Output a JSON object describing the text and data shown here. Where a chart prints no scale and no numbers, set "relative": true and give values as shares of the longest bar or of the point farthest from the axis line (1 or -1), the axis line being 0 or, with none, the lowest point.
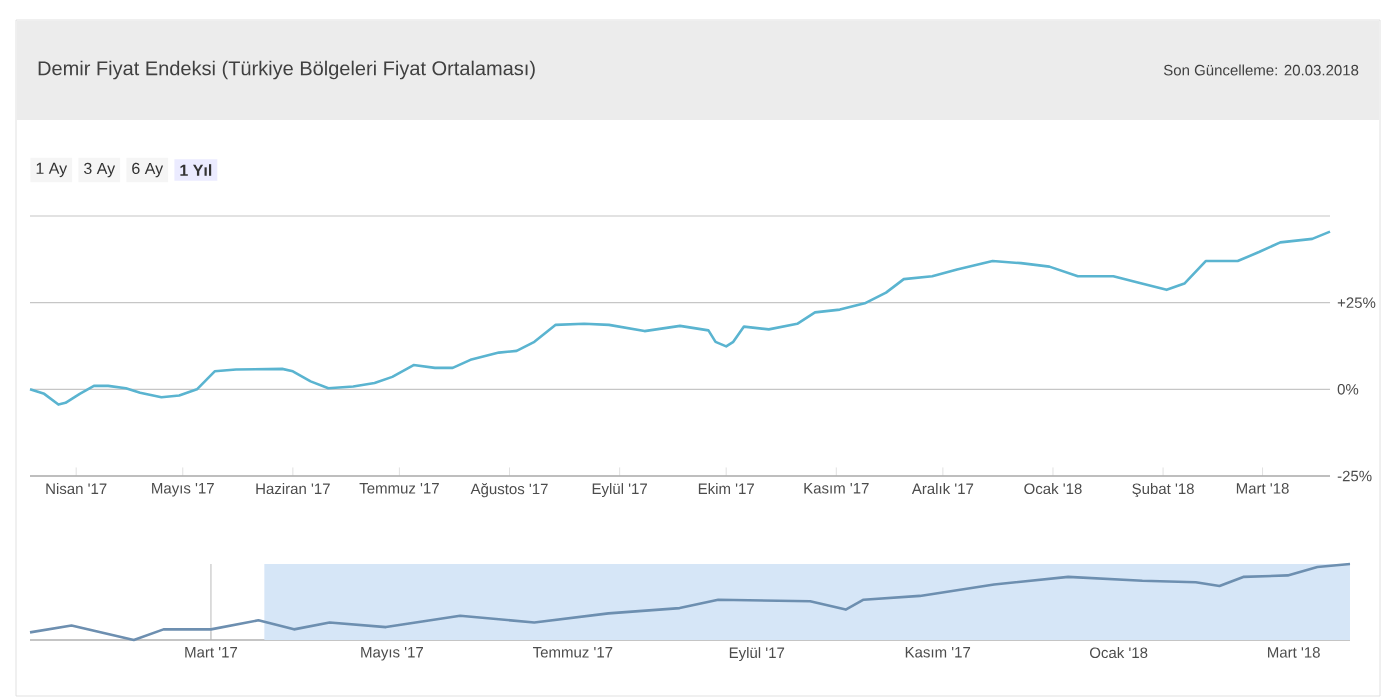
{
  "chart_data": [
    {
      "type": "line",
      "title": "Demir Fiyat Endeksi (Türkiye Bölgeleri Fiyat Ortalaması)",
      "annotations": [
        "Son Güncelleme: 20.03.2018",
        "1 Ay",
        "3 Ay",
        "6 Ay",
        "1 Yıl"
      ],
      "x": [
        "2017-03-19",
        "2017-03-23",
        "2017-03-27",
        "2017-03-29",
        "2017-04-02",
        "2017-04-06",
        "2017-04-10",
        "2017-04-15",
        "2017-04-19",
        "2017-04-25",
        "2017-04-30",
        "2017-05-05",
        "2017-05-10",
        "2017-05-16",
        "2017-05-29",
        "2017-06-01",
        "2017-06-06",
        "2017-06-11",
        "2017-06-18",
        "2017-06-24",
        "2017-06-29",
        "2017-07-05",
        "2017-07-11",
        "2017-07-16",
        "2017-07-21",
        "2017-07-29",
        "2017-08-03",
        "2017-08-08",
        "2017-08-14",
        "2017-08-22",
        "2017-08-29",
        "2017-09-08",
        "2017-09-18",
        "2017-09-26",
        "2017-09-28",
        "2017-10-01",
        "2017-10-03",
        "2017-10-06",
        "2017-10-13",
        "2017-10-21",
        "2017-10-26",
        "2017-11-02",
        "2017-11-09",
        "2017-11-15",
        "2017-11-20",
        "2017-11-28",
        "2017-12-05",
        "2017-12-15",
        "2017-12-23",
        "2017-12-31",
        "2018-01-08",
        "2018-01-18",
        "2018-01-26",
        "2018-02-02",
        "2018-02-07",
        "2018-02-13",
        "2018-02-22",
        "2018-02-28",
        "2018-03-06",
        "2018-03-15",
        "2018-03-20"
      ],
      "values": [
        0,
        -1.3,
        -4.4,
        -3.9,
        -1.3,
        1,
        1,
        0.3,
        -1,
        -2.3,
        -1.8,
        0,
        5.2,
        5.7,
        5.9,
        5.2,
        2.3,
        0.3,
        0.8,
        1.8,
        3.6,
        7,
        6.2,
        6.2,
        8.5,
        10.6,
        11.1,
        13.7,
        18.6,
        18.9,
        18.6,
        16.8,
        18.3,
        17,
        13.7,
        12.4,
        13.7,
        18.1,
        17.3,
        18.9,
        22.2,
        23,
        24.8,
        27.9,
        31.8,
        32.6,
        34.6,
        37,
        36.4,
        35.4,
        32.6,
        32.6,
        30.5,
        28.7,
        30.5,
        37,
        37,
        39.6,
        42.4,
        43.4,
        45.5
      ],
      "color": "#5ab4d0",
      "marker": "none",
      "xlim": [
        "2017-03-19",
        "2018-03-20"
      ],
      "xticks": [
        {
          "value": "2017-04-01",
          "label": "Nisan '17"
        },
        {
          "value": "2017-05-01",
          "label": "Mayıs '17"
        },
        {
          "value": "2017-06-01",
          "label": "Haziran '17"
        },
        {
          "value": "2017-07-01",
          "label": "Temmuz '17"
        },
        {
          "value": "2017-08-01",
          "label": "Ağustos '17"
        },
        {
          "value": "2017-09-01",
          "label": "Eylül '17"
        },
        {
          "value": "2017-10-01",
          "label": "Ekim '17"
        },
        {
          "value": "2017-11-01",
          "label": "Kasım '17"
        },
        {
          "value": "2017-12-01",
          "label": "Aralık '17"
        },
        {
          "value": "2018-01-01",
          "label": "Ocak '18"
        },
        {
          "value": "2018-02-01",
          "label": "Şubat '18"
        },
        {
          "value": "2018-03-01",
          "label": "Mart '18"
        }
      ],
      "ylim": [
        -25,
        50
      ],
      "yticks": [
        {
          "value": -25,
          "label": "-25%"
        },
        {
          "value": 0,
          "label": "0%"
        },
        {
          "value": 25,
          "label": "+25%"
        },
        {
          "value": 50,
          "label": null
        }
      ],
      "grid": "y"
    },
    {
      "type": "line",
      "relative": true,
      "tick_labels": "x",
      "color": "#6d8fb0",
      "marker": "none",
      "x": [
        "2016-12-30",
        "2017-01-13",
        "2017-02-03",
        "2017-02-13",
        "2017-03-01",
        "2017-03-17",
        "2017-03-29",
        "2017-04-10",
        "2017-04-29",
        "2017-05-24",
        "2017-06-18",
        "2017-07-13",
        "2017-08-06",
        "2017-08-19",
        "2017-09-19",
        "2017-10-01",
        "2017-10-07",
        "2017-10-26",
        "2017-11-20",
        "2017-12-15",
        "2018-01-09",
        "2018-01-27",
        "2018-02-04",
        "2018-02-12",
        "2018-02-27",
        "2018-03-09",
        "2018-03-20"
      ],
      "values": [
        0.1,
        0.19,
        0,
        0.14,
        0.14,
        0.26,
        0.14,
        0.23,
        0.17,
        0.32,
        0.23,
        0.35,
        0.42,
        0.53,
        0.51,
        0.4,
        0.53,
        0.58,
        0.73,
        0.83,
        0.78,
        0.76,
        0.71,
        0.83,
        0.85,
        0.96,
        1
      ],
      "xlim": [
        "2016-12-30",
        "2018-03-20"
      ],
      "xticks": [
        {
          "value": "2017-03-01",
          "label": "Mart '17"
        },
        {
          "value": "2017-05-01",
          "label": "Mayıs '17"
        },
        {
          "value": "2017-07-01",
          "label": "Temmuz '17"
        },
        {
          "value": "2017-09-01",
          "label": "Eylül '17"
        },
        {
          "value": "2017-11-01",
          "label": "Kasım '17"
        },
        {
          "value": "2018-01-01",
          "label": "Ocak '18"
        },
        {
          "value": "2018-03-01",
          "label": "Mart '18"
        }
      ],
      "bands": [
        {
          "axis": "x",
          "from": "2017-03-19",
          "to": "2018-03-20",
          "color": "#d6e6f7"
        }
      ],
      "grid": "x"
    }
  ]
}
